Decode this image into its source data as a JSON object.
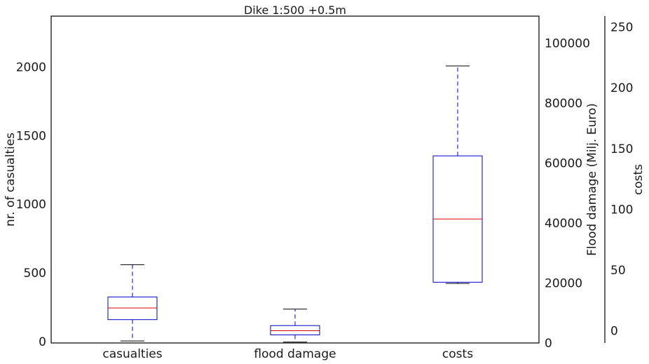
{
  "chart_data": {
    "type": "box",
    "title": "Dike 1:500 +0.5m",
    "categories": [
      "casualties",
      "flood damage",
      "costs"
    ],
    "axes": {
      "left": {
        "label": "nr. of casualties",
        "ylim": [
          -10,
          2370
        ],
        "ticks": [
          0,
          500,
          1000,
          1500,
          2000
        ]
      },
      "right1": {
        "label": "Flood damage (Milj. Euro)",
        "ylim": [
          0,
          109000
        ],
        "ticks": [
          0,
          20000,
          40000,
          60000,
          80000,
          100000
        ]
      },
      "right2": {
        "label": "costs",
        "ylim": [
          -10,
          259
        ],
        "ticks": [
          0,
          50,
          100,
          150,
          200,
          250
        ]
      }
    },
    "series": [
      {
        "category": "casualties",
        "axis": "left",
        "whisker_low": 5,
        "q1": 160,
        "median": 245,
        "q3": 325,
        "whisker_high": 560
      },
      {
        "category": "flood damage",
        "axis": "right1",
        "whisker_low": 300,
        "q1": 2700,
        "median": 4100,
        "q3": 5800,
        "whisker_high": 11300
      },
      {
        "category": "costs",
        "axis": "right2",
        "whisker_low": 39,
        "q1": 40,
        "median": 92,
        "q3": 144,
        "whisker_high": 218
      }
    ],
    "grid": false,
    "colors": {
      "box": "#0000cc",
      "median": "#dd0000",
      "cap": "#000000",
      "axis": "#000000"
    }
  }
}
